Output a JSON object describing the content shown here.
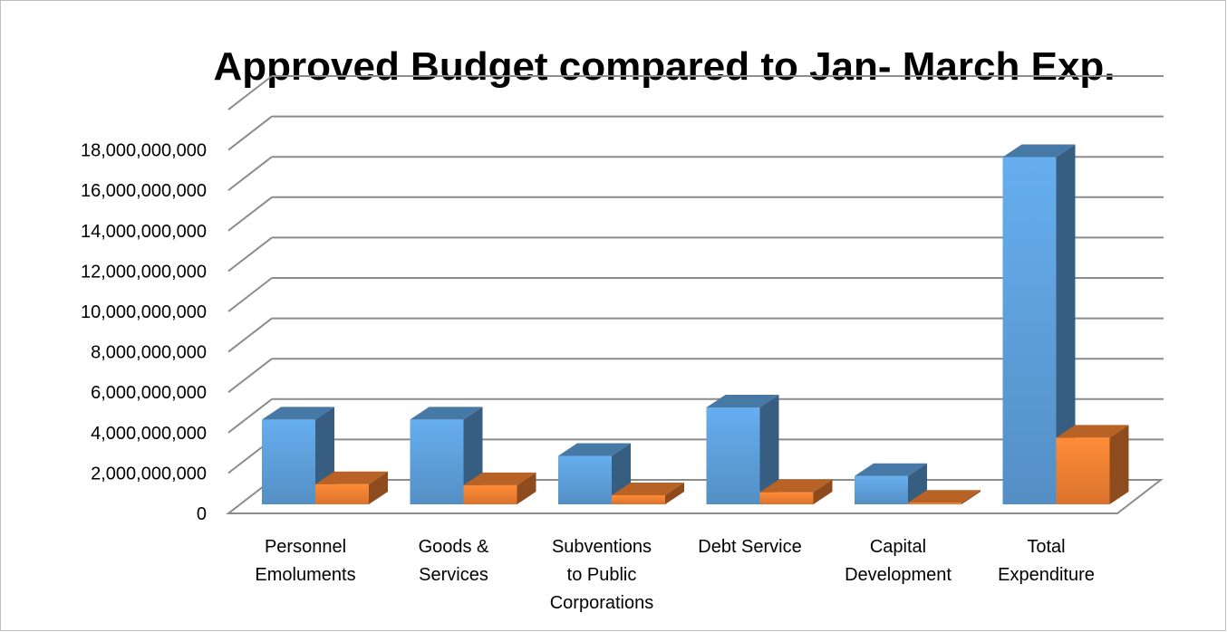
{
  "chart_data": {
    "type": "bar",
    "title": "Approved Budget compared to Jan- March Exp.",
    "xlabel": "",
    "ylabel": "",
    "ylim": [
      0,
      18000000000
    ],
    "y_ticks": [
      "0",
      "2,000,000,000",
      "4,000,000,000",
      "6,000,000,000",
      "8,000,000,000",
      "10,000,000,000",
      "12,000,000,000",
      "14,000,000,000",
      "16,000,000,000",
      "18,000,000,000"
    ],
    "categories": [
      [
        "Personnel",
        "Emoluments"
      ],
      [
        "Goods &",
        "Services"
      ],
      [
        "Subventions",
        "to Public",
        "Corporations"
      ],
      [
        "Debt Service"
      ],
      [
        "Capital",
        "Development"
      ],
      [
        "Total",
        "Expenditure"
      ]
    ],
    "series": [
      {
        "values": [
          4200000000,
          4200000000,
          2400000000,
          4800000000,
          1400000000,
          17200000000
        ],
        "color": "#5b9bd5"
      },
      {
        "values": [
          1000000000,
          950000000,
          450000000,
          600000000,
          80000000,
          3300000000
        ],
        "color": "#ed7d31"
      }
    ],
    "grid": true,
    "legend": "none",
    "projection": "3d"
  }
}
